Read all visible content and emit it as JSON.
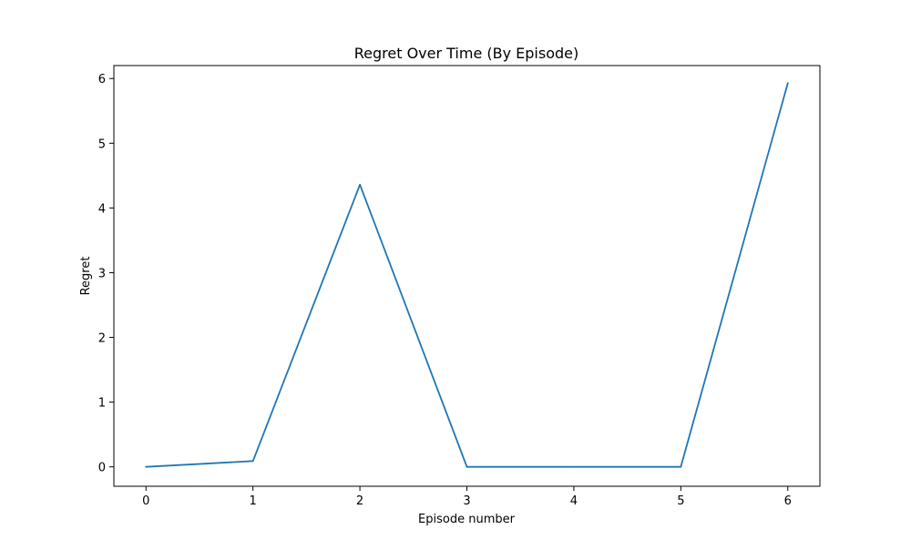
{
  "chart_data": {
    "type": "line",
    "title": "Regret Over Time (By Episode)",
    "xlabel": "Episode number",
    "ylabel": "Regret",
    "xlim": [
      -0.3,
      6.3
    ],
    "ylim": [
      -0.3,
      6.2
    ],
    "xticks": [
      0,
      1,
      2,
      3,
      4,
      5,
      6
    ],
    "yticks": [
      0,
      1,
      2,
      3,
      4,
      5,
      6
    ],
    "grid": false,
    "legend": "none",
    "x": [
      0,
      1,
      2,
      3,
      4,
      5,
      6
    ],
    "series": [
      {
        "values": [
          0.0,
          0.09,
          4.36,
          0.0,
          0.0,
          0.0,
          5.93
        ],
        "color": "#1f77b4"
      }
    ]
  }
}
